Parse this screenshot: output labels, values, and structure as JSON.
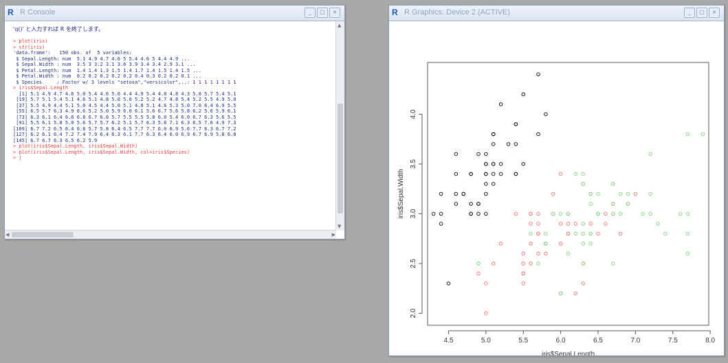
{
  "console": {
    "title": "R Console",
    "window_buttons": [
      "_",
      "□",
      "×"
    ],
    "message": "'q()' と入力すれば R を終了します。",
    "lines": [
      {
        "text": "> plot(iris)",
        "red": true
      },
      {
        "text": "> str(iris)",
        "red": true
      },
      {
        "text": "'data.frame':   150 obs. of  5 variables:",
        "red": false
      },
      {
        "text": " $ Sepal.Length: num  5.1 4.9 4.7 4.6 5 5.4 4.6 5 4.4 4.9 ...",
        "red": false
      },
      {
        "text": " $ Sepal.Width : num  3.5 3 3.2 3.1 3.6 3.9 3.4 3.4 2.9 3.1 ...",
        "red": false
      },
      {
        "text": " $ Petal.Length: num  1.4 1.4 1.3 1.5 1.4 1.7 1.4 1.5 1.4 1.5 ...",
        "red": false
      },
      {
        "text": " $ Petal.Width : num  0.2 0.2 0.2 0.2 0.2 0.4 0.3 0.2 0.2 0.1 ...",
        "red": false
      },
      {
        "text": " $ Species     : Factor w/ 3 levels \"setosa\",\"versicolor\",..: 1 1 1 1 1 1 1 1",
        "red": false
      },
      {
        "text": "> iris$Sepal.Length",
        "red": true
      },
      {
        "text": "  [1] 5.1 4.9 4.7 4.6 5.0 5.4 4.6 5.0 4.4 4.9 5.4 4.8 4.8 4.3 5.8 5.7 5.4 5.1",
        "red": false
      },
      {
        "text": " [19] 5.7 5.1 5.4 5.1 4.6 5.1 4.8 5.0 5.0 5.2 5.2 4.7 4.8 5.4 5.2 5.5 4.9 5.0",
        "red": false
      },
      {
        "text": " [37] 5.5 4.9 4.4 5.1 5.0 4.5 4.4 5.0 5.1 4.8 5.1 4.6 5.3 5.0 7.0 6.4 6.9 5.5",
        "red": false
      },
      {
        "text": " [55] 6.5 5.7 6.3 4.9 6.6 5.2 5.0 5.9 6.0 6.1 5.6 6.7 5.6 5.8 6.2 5.6 5.9 6.1",
        "red": false
      },
      {
        "text": " [73] 6.3 6.1 6.4 6.6 6.8 6.7 6.0 5.7 5.5 5.5 5.8 6.0 5.4 6.0 6.7 6.3 5.6 5.5",
        "red": false
      },
      {
        "text": " [91] 5.5 6.1 5.8 5.0 5.6 5.7 5.7 6.2 5.1 5.7 6.3 5.8 7.1 6.3 6.5 7.6 4.9 7.3",
        "red": false
      },
      {
        "text": "[109] 6.7 7.2 6.5 6.4 6.8 5.7 5.8 6.4 6.5 7.7 7.7 6.0 6.9 5.6 7.7 6.3 6.7 7.2",
        "red": false
      },
      {
        "text": "[127] 6.2 6.1 6.4 7.2 7.4 7.9 6.4 6.3 6.1 7.7 6.3 6.4 6.0 6.9 6.7 6.9 5.8 6.8",
        "red": false
      },
      {
        "text": "[145] 6.7 6.7 6.3 6.5 6.2 5.9",
        "red": false
      },
      {
        "text": "> plot(iris$Sepal.Length, iris$Sepal.Width)",
        "red": true
      },
      {
        "text": "> plot(iris$Sepal.Length, iris$Sepal.Width, col=iris$Species)",
        "red": true
      },
      {
        "text": "> |",
        "red": true
      }
    ]
  },
  "graphics": {
    "title": "R Graphics: Device 2 (ACTIVE)",
    "window_buttons": [
      "_",
      "□",
      "×"
    ]
  },
  "chart_data": {
    "type": "scatter",
    "xlabel": "iris$Sepal.Length",
    "ylabel": "iris$Sepal.Width",
    "xlim": [
      4.3,
      7.9
    ],
    "ylim": [
      2.0,
      4.4
    ],
    "x_ticks": [
      4.5,
      5.0,
      5.5,
      6.0,
      6.5,
      7.0,
      7.5,
      8.0
    ],
    "x_tick_labels": [
      "4.5",
      "5.0",
      "5.5",
      "6.0",
      "6.5",
      "7.0",
      "7.5",
      "8.0"
    ],
    "y_ticks": [
      2.0,
      2.5,
      3.0,
      3.5,
      4.0
    ],
    "y_tick_labels": [
      "2.0",
      "2.5",
      "3.0",
      "3.5",
      "4.0"
    ],
    "grid": false,
    "legend": "none",
    "series": [
      {
        "color": "#000000",
        "x": [
          5.1,
          4.9,
          4.7,
          4.6,
          5.0,
          5.4,
          4.6,
          5.0,
          4.4,
          4.9,
          5.4,
          4.8,
          4.8,
          4.3,
          5.8,
          5.7,
          5.4,
          5.1,
          5.7,
          5.1,
          5.4,
          5.1,
          4.6,
          5.1,
          4.8,
          5.0,
          5.0,
          5.2,
          5.2,
          4.7,
          4.8,
          5.4,
          5.2,
          5.5,
          4.9,
          5.0,
          5.5,
          4.9,
          4.4,
          5.1,
          5.0,
          4.5,
          4.4,
          5.0,
          5.1,
          4.8,
          5.1,
          4.6,
          5.3,
          5.0
        ],
        "y": [
          3.5,
          3.0,
          3.2,
          3.1,
          3.6,
          3.9,
          3.4,
          3.4,
          2.9,
          3.1,
          3.7,
          3.4,
          3.0,
          3.0,
          4.0,
          4.4,
          3.9,
          3.5,
          3.8,
          3.8,
          3.4,
          3.7,
          3.6,
          3.3,
          3.4,
          3.0,
          3.4,
          3.5,
          3.4,
          3.2,
          3.1,
          3.4,
          4.1,
          4.2,
          3.1,
          3.2,
          3.5,
          3.6,
          3.0,
          3.4,
          3.5,
          2.3,
          3.2,
          3.5,
          3.8,
          3.0,
          3.8,
          3.2,
          3.7,
          3.3
        ]
      },
      {
        "color": "#f07070",
        "x": [
          7.0,
          6.4,
          6.9,
          5.5,
          6.5,
          5.7,
          6.3,
          4.9,
          6.6,
          5.2,
          5.0,
          5.9,
          6.0,
          6.1,
          5.6,
          6.7,
          5.6,
          5.8,
          6.2,
          5.6,
          5.9,
          6.1,
          6.3,
          6.1,
          6.4,
          6.6,
          6.8,
          6.7,
          6.0,
          5.7,
          5.5,
          5.5,
          5.8,
          6.0,
          5.4,
          6.0,
          6.7,
          6.3,
          5.6,
          5.5,
          5.5,
          6.1,
          5.8,
          5.0,
          5.6,
          5.7,
          5.7,
          6.2,
          5.1,
          5.7
        ],
        "y": [
          3.2,
          3.2,
          3.1,
          2.3,
          2.8,
          2.8,
          3.3,
          2.4,
          2.9,
          2.7,
          2.0,
          3.0,
          2.2,
          2.9,
          2.9,
          3.1,
          3.0,
          2.7,
          2.2,
          2.5,
          3.2,
          2.8,
          2.5,
          2.8,
          2.9,
          3.0,
          2.8,
          3.0,
          2.9,
          2.6,
          2.4,
          2.4,
          2.7,
          2.7,
          3.0,
          3.4,
          3.1,
          2.3,
          3.0,
          2.5,
          2.6,
          3.0,
          2.6,
          2.3,
          2.7,
          3.0,
          2.9,
          2.9,
          2.5,
          2.8
        ]
      },
      {
        "color": "#7ed27e",
        "x": [
          6.3,
          5.8,
          7.1,
          6.3,
          6.5,
          7.6,
          4.9,
          7.3,
          6.7,
          7.2,
          6.5,
          6.4,
          6.8,
          5.7,
          5.8,
          6.4,
          6.5,
          7.7,
          7.7,
          6.0,
          6.9,
          5.6,
          7.7,
          6.3,
          6.7,
          7.2,
          6.2,
          6.1,
          6.4,
          7.2,
          7.4,
          7.9,
          6.4,
          6.3,
          6.1,
          7.7,
          6.3,
          6.4,
          6.0,
          6.9,
          6.7,
          6.9,
          5.8,
          6.8,
          6.7,
          6.7,
          6.3,
          6.5,
          6.2,
          5.9
        ],
        "y": [
          3.3,
          2.7,
          3.0,
          2.9,
          3.0,
          3.0,
          2.5,
          2.9,
          2.5,
          3.6,
          3.2,
          2.7,
          3.0,
          2.5,
          2.8,
          3.2,
          3.0,
          3.8,
          2.6,
          2.2,
          3.2,
          2.8,
          2.8,
          2.7,
          3.3,
          3.2,
          2.8,
          3.0,
          2.8,
          3.0,
          2.8,
          3.8,
          2.8,
          2.8,
          2.6,
          3.0,
          3.4,
          3.1,
          3.0,
          3.1,
          3.1,
          3.1,
          2.7,
          3.2,
          3.3,
          3.0,
          2.5,
          3.0,
          3.4,
          3.0
        ]
      }
    ]
  }
}
